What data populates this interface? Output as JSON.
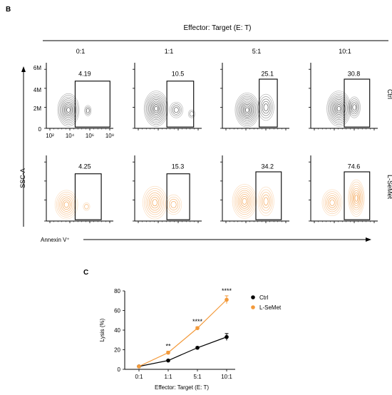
{
  "figure": {
    "panel_b_label": "B",
    "panel_c_label": "C"
  },
  "panel_b": {
    "header": "Effector: Target (E: T)",
    "columns": [
      "0:1",
      "1:1",
      "5:1",
      "10:1"
    ],
    "rows": [
      "Ctrl",
      "L-SeMet"
    ],
    "y_ticks": [
      "6M",
      "4M",
      "2M",
      "0"
    ],
    "x_ticks": [
      "10²",
      "10⁴",
      "10⁶",
      "10⁸"
    ],
    "y_axis_label": "SSC-A",
    "x_axis_label": "Annexin V⁺",
    "gate_values": [
      [
        "4.19",
        "10.5",
        "25.1",
        "30.8"
      ],
      [
        "4.25",
        "15.3",
        "34.2",
        "74.6"
      ]
    ],
    "row_colors": [
      "#333333",
      "#f08a24"
    ]
  },
  "chart_data": {
    "type": "line",
    "categories": [
      "0:1",
      "1:1",
      "5:1",
      "10:1"
    ],
    "xlabel": "Effector: Target (E: T)",
    "ylabel": "Lysis (%)",
    "ylim": [
      0,
      80
    ],
    "yticks": [
      0,
      20,
      40,
      60,
      80
    ],
    "legend_position": "right",
    "series": [
      {
        "name": "Ctrl",
        "values": [
          3,
          9,
          22,
          33
        ],
        "errors": [
          0.5,
          0.8,
          1.0,
          3.5
        ],
        "color": "#000000"
      },
      {
        "name": "L-SeMet",
        "values": [
          3,
          17,
          42,
          71
        ],
        "errors": [
          0.5,
          1.5,
          1.5,
          4.0
        ],
        "color": "#f39a3b"
      }
    ],
    "significance": [
      "",
      "**",
      "****",
      "****"
    ]
  }
}
